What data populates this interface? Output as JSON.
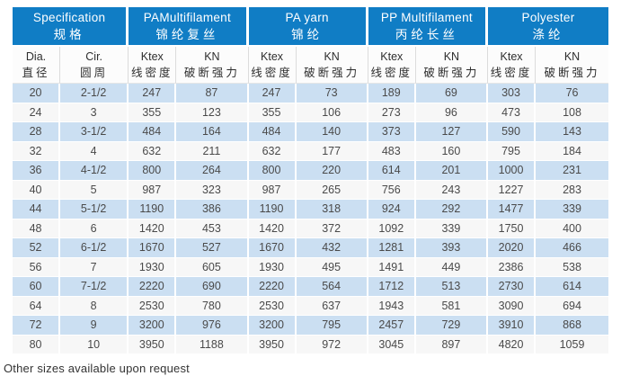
{
  "colors": {
    "header_blue": "#107dc5",
    "row_alt_blue": "#cbdff2",
    "row_plain": "#f7f7f7",
    "header_text": "#ffffff",
    "data_text": "#4a4a4a"
  },
  "table": {
    "groups": [
      {
        "en": "Specification",
        "cn": "规格",
        "sub": [
          {
            "en": "Dia.",
            "cn": "直径"
          },
          {
            "en": "Cir.",
            "cn": "圆周"
          }
        ]
      },
      {
        "en": "PAMultifilament",
        "cn": "锦纶复丝",
        "sub": [
          {
            "en": "Ktex",
            "cn": "线密度"
          },
          {
            "en": "KN",
            "cn": "破断强力"
          }
        ]
      },
      {
        "en": "PA yarn",
        "cn": "锦纶",
        "sub": [
          {
            "en": "Ktex",
            "cn": "线密度"
          },
          {
            "en": "KN",
            "cn": "破断强力"
          }
        ]
      },
      {
        "en": "PP Multifilament",
        "cn": "丙纶长丝",
        "sub": [
          {
            "en": "Ktex",
            "cn": "线密度"
          },
          {
            "en": "KN",
            "cn": "破断强力"
          }
        ]
      },
      {
        "en": "Polyester",
        "cn": "涤纶",
        "sub": [
          {
            "en": "Ktex",
            "cn": "线密度"
          },
          {
            "en": "KN",
            "cn": "破断强力"
          }
        ]
      }
    ],
    "rows": [
      [
        "20",
        "2-1/2",
        "247",
        "87",
        "247",
        "73",
        "189",
        "69",
        "303",
        "76"
      ],
      [
        "24",
        "3",
        "355",
        "123",
        "355",
        "106",
        "273",
        "96",
        "473",
        "108"
      ],
      [
        "28",
        "3-1/2",
        "484",
        "164",
        "484",
        "140",
        "373",
        "127",
        "590",
        "143"
      ],
      [
        "32",
        "4",
        "632",
        "211",
        "632",
        "177",
        "483",
        "160",
        "795",
        "184"
      ],
      [
        "36",
        "4-1/2",
        "800",
        "264",
        "800",
        "220",
        "614",
        "201",
        "1000",
        "231"
      ],
      [
        "40",
        "5",
        "987",
        "323",
        "987",
        "265",
        "756",
        "243",
        "1227",
        "283"
      ],
      [
        "44",
        "5-1/2",
        "1190",
        "386",
        "1190",
        "318",
        "924",
        "292",
        "1477",
        "339"
      ],
      [
        "48",
        "6",
        "1420",
        "453",
        "1420",
        "372",
        "1092",
        "339",
        "1750",
        "400"
      ],
      [
        "52",
        "6-1/2",
        "1670",
        "527",
        "1670",
        "432",
        "1281",
        "393",
        "2020",
        "466"
      ],
      [
        "56",
        "7",
        "1930",
        "605",
        "1930",
        "495",
        "1491",
        "449",
        "2386",
        "538"
      ],
      [
        "60",
        "7-1/2",
        "2220",
        "690",
        "2220",
        "564",
        "1712",
        "513",
        "2730",
        "614"
      ],
      [
        "64",
        "8",
        "2530",
        "780",
        "2530",
        "637",
        "1943",
        "581",
        "3090",
        "694"
      ],
      [
        "72",
        "9",
        "3200",
        "976",
        "3200",
        "795",
        "2457",
        "729",
        "3910",
        "868"
      ],
      [
        "80",
        "10",
        "3950",
        "1188",
        "3950",
        "972",
        "3045",
        "897",
        "4820",
        "1059"
      ]
    ]
  },
  "footer": {
    "note": "Other sizes available upon request"
  }
}
